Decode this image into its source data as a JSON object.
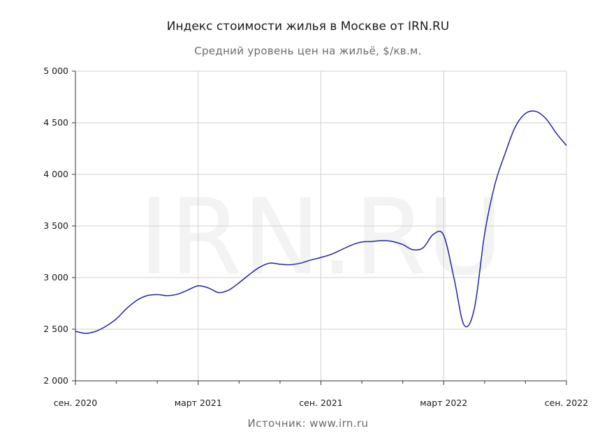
{
  "chart_data": {
    "type": "line",
    "title": "Индекс стоимости жилья в Москве от IRN.RU",
    "subtitle": "Средний уровень цен на жильё, $/кв.м.",
    "source": "Источник: www.irn.ru",
    "watermark": "IRN.RU",
    "xlabel": "",
    "ylabel": "",
    "ylim": [
      2000,
      5000
    ],
    "yticks": [
      2000,
      2500,
      3000,
      3500,
      4000,
      4500,
      5000
    ],
    "ytick_labels": [
      "2 000",
      "2 500",
      "3 000",
      "3 500",
      "4 000",
      "4 500",
      "5 000"
    ],
    "xlim": [
      0,
      24
    ],
    "xticks": [
      0,
      6,
      12,
      18,
      24
    ],
    "xtick_labels": [
      "сен. 2020",
      "март 2021",
      "сен. 2021",
      "март 2022",
      "сен. 2022"
    ],
    "minor_x_step": 2,
    "grid": true,
    "line_color": "#2323a0",
    "series": [
      {
        "x": [
          0,
          0.5,
          1,
          1.5,
          2,
          2.5,
          3,
          3.5,
          4,
          4.5,
          5,
          5.5,
          6,
          6.5,
          7,
          7.5,
          8,
          8.5,
          9,
          9.5,
          10,
          10.5,
          11,
          11.5,
          12,
          12.5,
          13,
          13.5,
          14,
          14.5,
          15,
          15.5,
          16,
          16.5,
          17,
          17.5,
          18,
          18.5,
          19,
          19.5,
          20,
          20.5,
          21,
          21.5,
          22,
          22.5,
          23,
          23.5,
          24
        ],
        "values": [
          2480,
          2460,
          2480,
          2530,
          2600,
          2700,
          2780,
          2825,
          2835,
          2825,
          2840,
          2880,
          2920,
          2900,
          2855,
          2880,
          2950,
          3030,
          3100,
          3140,
          3130,
          3125,
          3140,
          3170,
          3195,
          3225,
          3270,
          3315,
          3345,
          3350,
          3358,
          3350,
          3320,
          3270,
          3290,
          3420,
          3410,
          3000,
          2540,
          2700,
          3420,
          3900,
          4200,
          4460,
          4590,
          4610,
          4540,
          4400,
          4280
        ]
      }
    ]
  }
}
